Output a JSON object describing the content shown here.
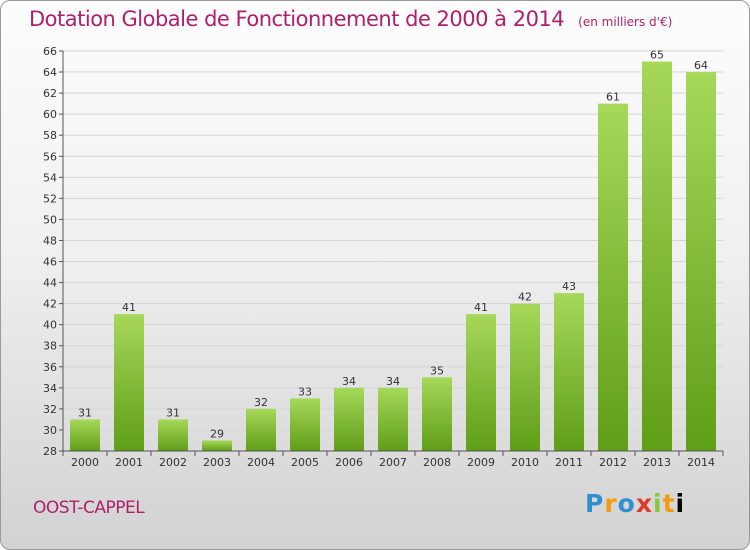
{
  "header": {
    "title": "Dotation Globale de Fonctionnement de 2000 à 2014",
    "unit": "(en milliers d'€)"
  },
  "footer": {
    "commune": "OOST-CAPPEL",
    "logo_letters": [
      "P",
      "r",
      "o",
      "x",
      "i",
      "t",
      "i"
    ]
  },
  "colors": {
    "title": "#b0206a",
    "bar_top": "#a6d85a",
    "bar_bottom": "#5f9e17",
    "grid": "#d6d6d6"
  },
  "chart_data": {
    "type": "bar",
    "title": "Dotation Globale de Fonctionnement de 2000 à 2014",
    "subtitle": "(en milliers d'€)",
    "xlabel": "",
    "ylabel": "",
    "categories": [
      "2000",
      "2001",
      "2002",
      "2003",
      "2004",
      "2005",
      "2006",
      "2007",
      "2008",
      "2009",
      "2010",
      "2011",
      "2012",
      "2013",
      "2014"
    ],
    "values": [
      31,
      41,
      31,
      29,
      32,
      33,
      34,
      34,
      35,
      41,
      42,
      43,
      61,
      65,
      64
    ],
    "ylim": [
      28,
      66
    ],
    "y_ticks": [
      28,
      30,
      32,
      34,
      36,
      38,
      40,
      42,
      44,
      46,
      48,
      50,
      52,
      54,
      56,
      58,
      60,
      62,
      64,
      66
    ],
    "grid": true,
    "data_labels": true,
    "legend": "none"
  }
}
